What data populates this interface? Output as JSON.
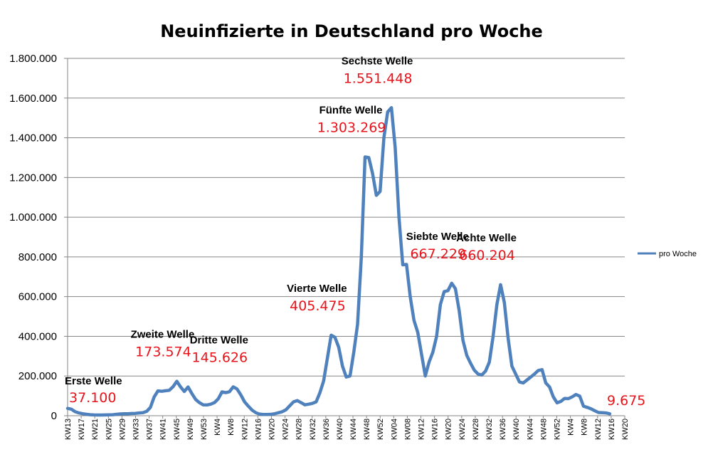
{
  "chart_data": {
    "type": "line",
    "title": "Neuinfizierte in Deutschland pro Woche",
    "xlabel": "",
    "ylabel": "",
    "ylim": [
      0,
      1800000
    ],
    "y_ticks": [
      0,
      200000,
      400000,
      600000,
      800000,
      1000000,
      1200000,
      1400000,
      1600000,
      1800000
    ],
    "y_tick_labels": [
      "0",
      "200.000",
      "400.000",
      "600.000",
      "800.000",
      "1.000.000",
      "1.200.000",
      "1.400.000",
      "1.600.000",
      "1.800.000"
    ],
    "x_tick_labels": [
      "KW13",
      "KW17",
      "KW21",
      "KW25",
      "KW29",
      "KW33",
      "KW37",
      "KW41",
      "KW45",
      "KW49",
      "KW53",
      "KW4",
      "KW8",
      "KW12",
      "KW16",
      "KW20",
      "KW24",
      "KW28",
      "KW32",
      "KW36",
      "KW40",
      "KW44",
      "KW48",
      "KW52",
      "KW04",
      "KW08",
      "KW12",
      "KW16",
      "KW20",
      "KW24",
      "KW28",
      "KW32",
      "KW36",
      "KW40",
      "KW44",
      "KW48",
      "KW52",
      "KW4",
      "KW8",
      "KW12",
      "KW16",
      "KW20"
    ],
    "grid": true,
    "legend": "right",
    "line_color": "#4f81bd",
    "series": [
      {
        "name": "pro Woche",
        "values": [
          37100,
          33000,
          20000,
          14000,
          10000,
          7000,
          5000,
          4000,
          3500,
          3500,
          4000,
          4500,
          5000,
          7000,
          9000,
          10000,
          10000,
          11000,
          12000,
          14000,
          15000,
          22000,
          42000,
          95000,
          125000,
          123000,
          126000,
          128000,
          146000,
          173574,
          145000,
          122000,
          145000,
          112000,
          82000,
          66000,
          55000,
          54000,
          58000,
          66000,
          85000,
          120000,
          116000,
          121000,
          145626,
          135000,
          105000,
          70000,
          48000,
          28000,
          15000,
          8000,
          6000,
          6000,
          7000,
          10000,
          15000,
          20000,
          30000,
          50000,
          70000,
          76000,
          66000,
          55000,
          58000,
          62000,
          70000,
          115000,
          175000,
          290000,
          405475,
          395000,
          345000,
          250000,
          195000,
          200000,
          320000,
          460000,
          800000,
          1303269,
          1300000,
          1220000,
          1110000,
          1130000,
          1400000,
          1530000,
          1551448,
          1350000,
          1000000,
          760000,
          762000,
          600000,
          480000,
          420000,
          310000,
          200000,
          270000,
          320000,
          400000,
          560000,
          625000,
          630000,
          667229,
          640000,
          530000,
          380000,
          305000,
          265000,
          230000,
          210000,
          205000,
          225000,
          270000,
          400000,
          560000,
          660204,
          570000,
          390000,
          250000,
          210000,
          170000,
          165000,
          180000,
          195000,
          210000,
          228000,
          232000,
          165000,
          145000,
          95000,
          65000,
          72000,
          87000,
          86000,
          95000,
          107000,
          99000,
          48000,
          42000,
          35000,
          25000,
          16000,
          15000,
          14000,
          9675
        ]
      }
    ],
    "annotations": [
      {
        "name": "Erste Welle",
        "value": "37.100",
        "index": 0
      },
      {
        "name": "Zweite Welle",
        "value": "173.574",
        "index": 29
      },
      {
        "name": "Dritte Welle",
        "value": "145.626",
        "index": 44
      },
      {
        "name": "Vierte Welle",
        "value": "405.475",
        "index": 70
      },
      {
        "name": "Fünfte Welle",
        "value": "1.303.269",
        "index": 79
      },
      {
        "name": "Sechste Welle",
        "value": "1.551.448",
        "index": 86
      },
      {
        "name": "Siebte Welle",
        "value": "667.229",
        "index": 102
      },
      {
        "name": "Achte Welle",
        "value": "660.204",
        "index": 115
      },
      {
        "name": "",
        "value": "9.675",
        "index": 144
      }
    ]
  }
}
